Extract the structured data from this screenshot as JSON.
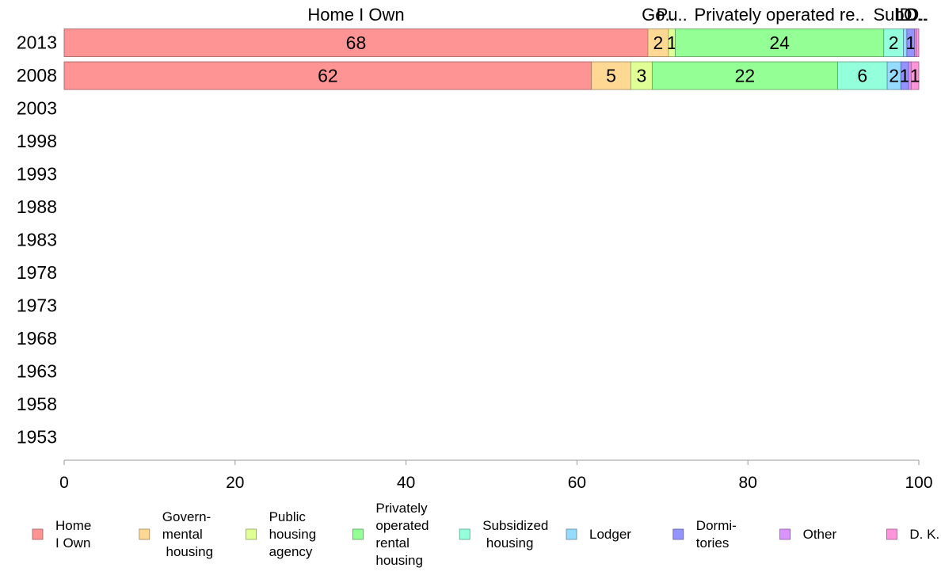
{
  "chart_data": {
    "type": "bar",
    "orientation": "horizontal",
    "stacked": true,
    "categories": [
      "2013",
      "2008",
      "2003",
      "1998",
      "1993",
      "1988",
      "1983",
      "1978",
      "1973",
      "1968",
      "1963",
      "1958",
      "1953"
    ],
    "xlim": [
      0,
      100
    ],
    "x_ticks": [
      0,
      20,
      40,
      60,
      80,
      100
    ],
    "grid": false,
    "legend_position": "bottom",
    "header_labels": [
      "Home I Own",
      "Go..",
      "Pu..",
      "Privately operated re..",
      "Sub..",
      "L..",
      "D..",
      "O..",
      "D.."
    ],
    "series": [
      {
        "name": "Home\nI Own",
        "color": "#ff9494",
        "values": [
          68.3,
          61.7,
          null,
          null,
          null,
          null,
          null,
          null,
          null,
          null,
          null,
          null,
          null
        ],
        "labels": [
          "68",
          "62"
        ]
      },
      {
        "name": "Govern-\nmental\n housing",
        "color": "#ffd894",
        "values": [
          2.4,
          4.6,
          null,
          null,
          null,
          null,
          null,
          null,
          null,
          null,
          null,
          null,
          null
        ],
        "labels": [
          "2",
          "5"
        ]
      },
      {
        "name": "Public\nhousing\nagency",
        "color": "#e0ff94",
        "values": [
          0.8,
          2.5,
          null,
          null,
          null,
          null,
          null,
          null,
          null,
          null,
          null,
          null,
          null
        ],
        "labels": [
          "1",
          "3"
        ]
      },
      {
        "name": "Privately\noperated\nrental\nhousing",
        "color": "#94ff94",
        "values": [
          24.4,
          21.7,
          null,
          null,
          null,
          null,
          null,
          null,
          null,
          null,
          null,
          null,
          null
        ],
        "labels": [
          "24",
          "22"
        ]
      },
      {
        "name": "Subsidized\n housing",
        "color": "#94ffdb",
        "values": [
          2.3,
          5.8,
          null,
          null,
          null,
          null,
          null,
          null,
          null,
          null,
          null,
          null,
          null
        ],
        "labels": [
          "2",
          "6"
        ]
      },
      {
        "name": "Lodger",
        "color": "#94dbff",
        "values": [
          0.4,
          1.6,
          null,
          null,
          null,
          null,
          null,
          null,
          null,
          null,
          null,
          null,
          null
        ],
        "labels": [
          "",
          "2"
        ]
      },
      {
        "name": "Dormi-\ntories",
        "color": "#9494ff",
        "values": [
          0.9,
          0.9,
          null,
          null,
          null,
          null,
          null,
          null,
          null,
          null,
          null,
          null,
          null
        ],
        "labels": [
          "1",
          "1"
        ]
      },
      {
        "name": "Other",
        "color": "#db94ff",
        "values": [
          0.2,
          0.3,
          null,
          null,
          null,
          null,
          null,
          null,
          null,
          null,
          null,
          null,
          null
        ],
        "labels": [
          "",
          ""
        ]
      },
      {
        "name": "D. K.",
        "color": "#ff94db",
        "values": [
          0.3,
          0.9,
          null,
          null,
          null,
          null,
          null,
          null,
          null,
          null,
          null,
          null,
          null
        ],
        "labels": [
          "",
          "1"
        ]
      }
    ]
  }
}
